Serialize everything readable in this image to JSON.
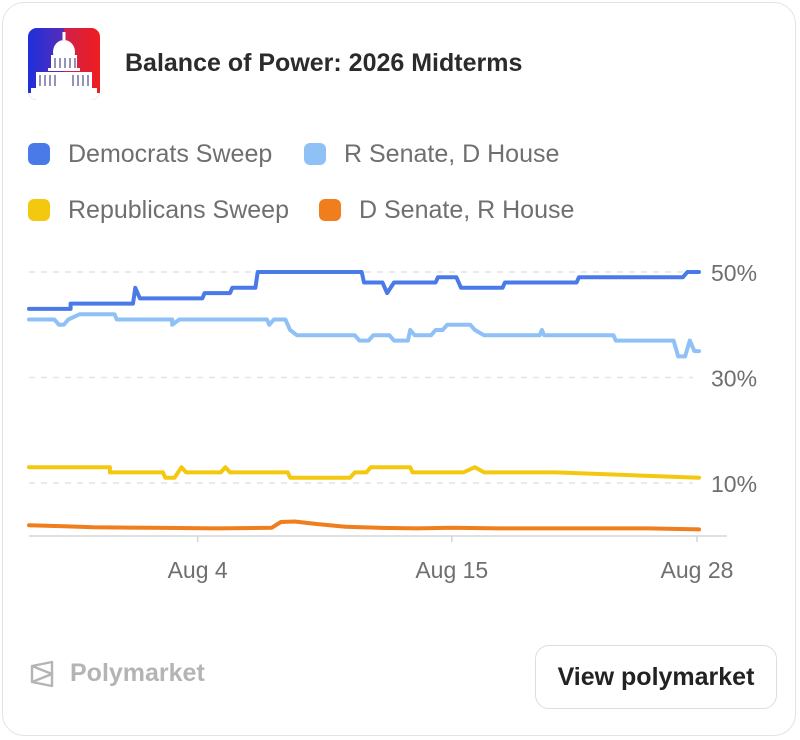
{
  "header": {
    "title": "Balance of Power: 2026 Midterms",
    "thumbnail_icon": "capitol-building-icon"
  },
  "legend": {
    "items": [
      {
        "label": "Democrats Sweep",
        "color": "#4a7ae8"
      },
      {
        "label": "R Senate, D House",
        "color": "#8fc0f6"
      },
      {
        "label": "Republicans Sweep",
        "color": "#f4c80e"
      },
      {
        "label": "D Senate, R House",
        "color": "#f07e1c"
      }
    ]
  },
  "chart_data": {
    "type": "line",
    "x_ticks": [
      "Aug 4",
      "Aug 15",
      "Aug 28"
    ],
    "y_ticks": [
      "50%",
      "30%",
      "10%"
    ],
    "y_tick_values": [
      50,
      30,
      10
    ],
    "ylim": [
      0,
      52
    ],
    "xlim": [
      -2.3,
      26.7
    ],
    "grid": true,
    "series": [
      {
        "name": "Democrats Sweep",
        "color": "#4a7ae8",
        "points": [
          [
            -2.3,
            43
          ],
          [
            -0.5,
            43
          ],
          [
            -0.5,
            44
          ],
          [
            2.2,
            44
          ],
          [
            2.3,
            47
          ],
          [
            2.5,
            45
          ],
          [
            5.2,
            45
          ],
          [
            5.3,
            46
          ],
          [
            6.4,
            46
          ],
          [
            6.5,
            47
          ],
          [
            7.5,
            47
          ],
          [
            7.6,
            50
          ],
          [
            12.1,
            50
          ],
          [
            12.2,
            48
          ],
          [
            13.0,
            48
          ],
          [
            13.2,
            46
          ],
          [
            13.5,
            48
          ],
          [
            15.3,
            48
          ],
          [
            15.4,
            49
          ],
          [
            16.2,
            49
          ],
          [
            16.4,
            47
          ],
          [
            18.2,
            47
          ],
          [
            18.3,
            48
          ],
          [
            21.4,
            48
          ],
          [
            21.5,
            49
          ],
          [
            26.0,
            49
          ],
          [
            26.2,
            50
          ],
          [
            26.7,
            50
          ]
        ]
      },
      {
        "name": "R Senate, D House",
        "color": "#8fc0f6",
        "points": [
          [
            -2.3,
            41
          ],
          [
            -1.2,
            41
          ],
          [
            -1.0,
            40
          ],
          [
            -0.8,
            40
          ],
          [
            -0.6,
            41
          ],
          [
            -0.1,
            42
          ],
          [
            1.4,
            42
          ],
          [
            1.5,
            41
          ],
          [
            3.9,
            41
          ],
          [
            3.9,
            40
          ],
          [
            4.2,
            41
          ],
          [
            8.0,
            41
          ],
          [
            8.1,
            40
          ],
          [
            8.3,
            41
          ],
          [
            8.8,
            41
          ],
          [
            9.0,
            39
          ],
          [
            9.3,
            38
          ],
          [
            11.8,
            38
          ],
          [
            12.0,
            37
          ],
          [
            12.4,
            37
          ],
          [
            12.6,
            38
          ],
          [
            13.3,
            38
          ],
          [
            13.5,
            37
          ],
          [
            14.1,
            37
          ],
          [
            14.2,
            39
          ],
          [
            14.4,
            38
          ],
          [
            15.1,
            38
          ],
          [
            15.3,
            39
          ],
          [
            15.6,
            39
          ],
          [
            15.8,
            40
          ],
          [
            16.8,
            40
          ],
          [
            17.0,
            39
          ],
          [
            17.4,
            38
          ],
          [
            19.8,
            38
          ],
          [
            19.9,
            39
          ],
          [
            20.0,
            38
          ],
          [
            23.0,
            38
          ],
          [
            23.1,
            37
          ],
          [
            25.6,
            37
          ],
          [
            25.8,
            34
          ],
          [
            26.1,
            34
          ],
          [
            26.3,
            37
          ],
          [
            26.5,
            35
          ],
          [
            26.7,
            35
          ]
        ]
      },
      {
        "name": "Republicans Sweep",
        "color": "#f4c80e",
        "points": [
          [
            -2.3,
            13
          ],
          [
            1.2,
            13
          ],
          [
            1.2,
            12
          ],
          [
            3.5,
            12
          ],
          [
            3.6,
            11
          ],
          [
            4.0,
            11
          ],
          [
            4.3,
            13
          ],
          [
            4.5,
            12
          ],
          [
            6.0,
            12
          ],
          [
            6.2,
            13
          ],
          [
            6.4,
            12
          ],
          [
            8.9,
            12
          ],
          [
            9.0,
            11
          ],
          [
            11.6,
            11
          ],
          [
            11.8,
            12
          ],
          [
            12.3,
            12
          ],
          [
            12.5,
            13
          ],
          [
            14.2,
            13
          ],
          [
            14.3,
            12
          ],
          [
            16.5,
            12
          ],
          [
            17.0,
            13
          ],
          [
            17.4,
            12
          ],
          [
            20.0,
            12
          ],
          [
            20.5,
            12
          ],
          [
            26.7,
            11
          ]
        ]
      },
      {
        "name": "D Senate, R House",
        "color": "#f07e1c",
        "points": [
          [
            -2.3,
            2
          ],
          [
            -0.8,
            1.8
          ],
          [
            0.5,
            1.6
          ],
          [
            3.0,
            1.5
          ],
          [
            5.8,
            1.4
          ],
          [
            8.2,
            1.5
          ],
          [
            8.6,
            2.6
          ],
          [
            9.2,
            2.7
          ],
          [
            10.2,
            2.2
          ],
          [
            11.4,
            1.7
          ],
          [
            12.8,
            1.5
          ],
          [
            14.5,
            1.4
          ],
          [
            16.0,
            1.5
          ],
          [
            18.0,
            1.4
          ],
          [
            21.0,
            1.4
          ],
          [
            24.5,
            1.4
          ],
          [
            26.7,
            1.2
          ]
        ]
      }
    ]
  },
  "footer": {
    "brand": "Polymarket",
    "button_label": "View polymarket",
    "brand_icon": "polymarket-logo-icon"
  }
}
